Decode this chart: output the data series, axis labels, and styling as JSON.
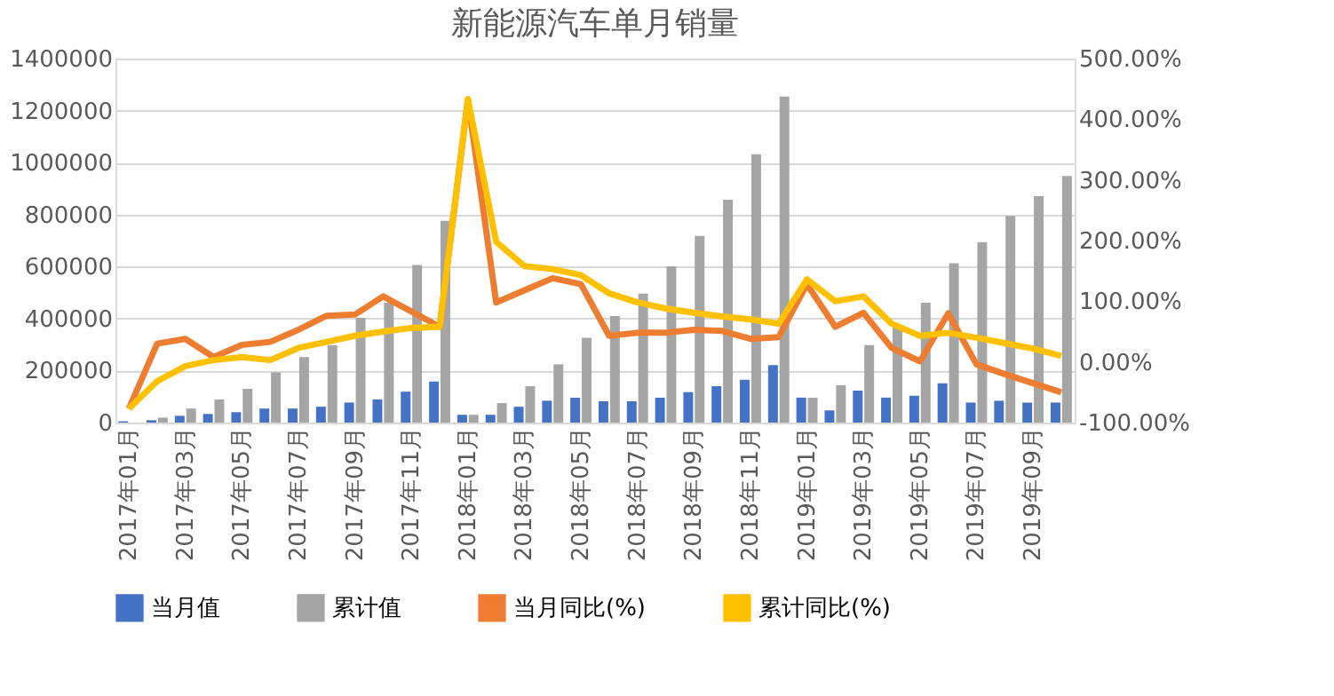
{
  "chart_data": {
    "type": "bar",
    "title": "新能源汽车单月销量",
    "categories": [
      "2017年01月",
      null,
      "2017年03月",
      null,
      "2017年05月",
      null,
      "2017年07月",
      null,
      "2017年09月",
      null,
      "2017年11月",
      null,
      "2018年01月",
      null,
      "2018年03月",
      null,
      "2018年05月",
      null,
      "2018年07月",
      null,
      "2018年09月",
      null,
      "2018年11月",
      null,
      "2019年01月",
      null,
      "2019年03月",
      null,
      "2019年05月",
      null,
      "2019年07月",
      null,
      "2019年09月",
      null
    ],
    "series": [
      {
        "name": "当月值",
        "color": "#4472c4",
        "values": [
          5000,
          9000,
          26000,
          33000,
          40000,
          54000,
          54000,
          61000,
          77000,
          89000,
          119000,
          158000,
          30000,
          30000,
          61000,
          84000,
          96000,
          82000,
          82000,
          96000,
          117000,
          140000,
          165000,
          221000,
          96000,
          47000,
          123000,
          96000,
          103000,
          151000,
          77000,
          84000,
          77000,
          77000
        ]
      },
      {
        "name": "累计值",
        "color": "#a5a5a5",
        "values": [
          null,
          19000,
          54000,
          89000,
          130000,
          193000,
          252000,
          298000,
          403000,
          461000,
          606000,
          776000,
          30000,
          75000,
          140000,
          224000,
          326000,
          410000,
          496000,
          601000,
          718000,
          857000,
          1032000,
          1254000,
          96000,
          144000,
          298000,
          368000,
          461000,
          613000,
          694000,
          795000,
          871000,
          948000
        ]
      },
      {
        "name": "当月同比(%)",
        "type": "line",
        "axis": "y2",
        "color": "#ed7d31",
        "values": [
          -77,
          30,
          38,
          8,
          28,
          33,
          53,
          76,
          78,
          108,
          83,
          58,
          433,
          98,
          118,
          138,
          128,
          43,
          48,
          48,
          53,
          51,
          38,
          41,
          128,
          58,
          81,
          23,
          1,
          80,
          -4,
          -20,
          -35,
          -50
        ]
      },
      {
        "name": "累计同比(%)",
        "type": "line",
        "axis": "y2",
        "color": "#ffc000",
        "values": [
          -77,
          -32,
          -7,
          3,
          8,
          3,
          23,
          33,
          43,
          50,
          56,
          58,
          433,
          198,
          158,
          153,
          143,
          113,
          98,
          88,
          81,
          75,
          70,
          63,
          136,
          100,
          108,
          63,
          43,
          48,
          40,
          31,
          22,
          10
        ]
      }
    ],
    "ylim": [
      0,
      1400000
    ],
    "yticks": [
      0,
      200000,
      400000,
      600000,
      800000,
      1000000,
      1200000,
      1400000
    ],
    "y2lim": [
      -100,
      500
    ],
    "y2ticks": [
      {
        "value": -100,
        "label": "-100.00%"
      },
      {
        "value": 0,
        "label": "0.00%"
      },
      {
        "value": 100,
        "label": "100.00%"
      },
      {
        "value": 200,
        "label": "200.00%"
      },
      {
        "value": 300,
        "label": "300.00%"
      },
      {
        "value": 400,
        "label": "400.00%"
      },
      {
        "value": 500,
        "label": "500.00%"
      }
    ],
    "grid": "y",
    "legend": "bottom"
  }
}
